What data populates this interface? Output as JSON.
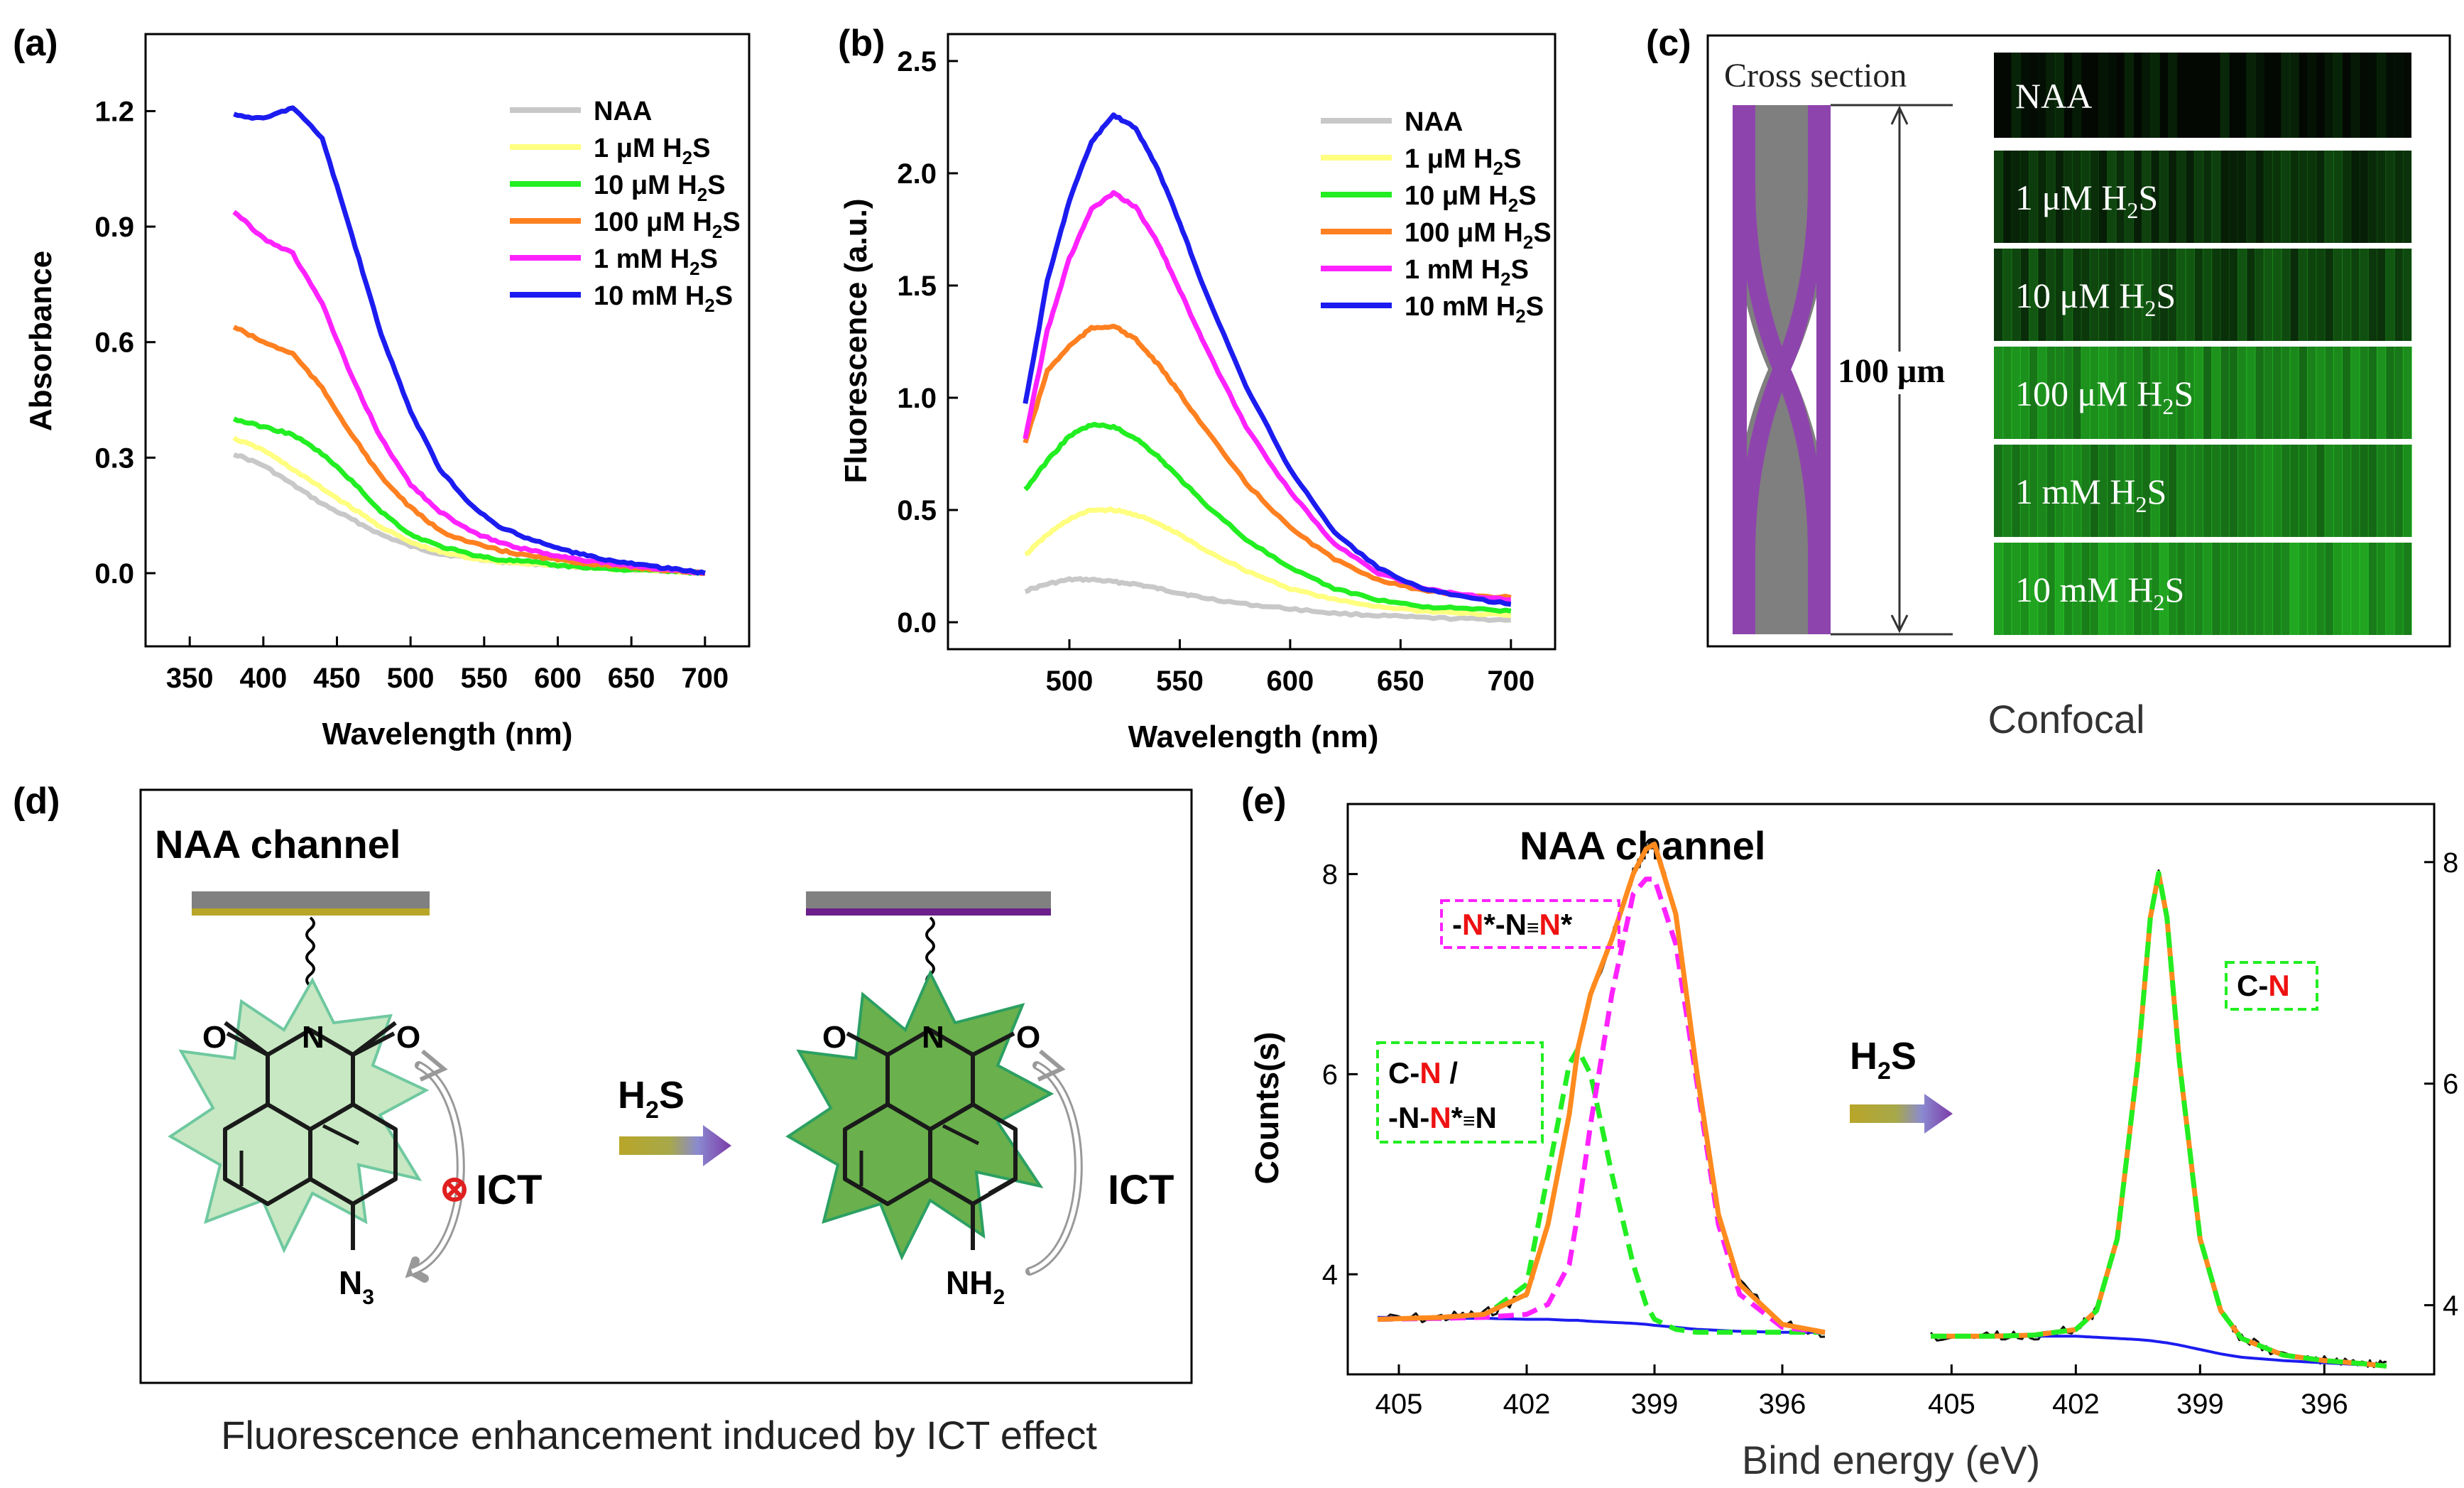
{
  "colors": {
    "NAA": "#c8c8c8",
    "1 µM": "#ffff80",
    "10 µM": "#22ee22",
    "100 µM": "#ff8020",
    "1 mM": "#ff22ff",
    "10 mM": "#1c1cf0",
    "fit_sum": "#ff8a1e",
    "fit_green": "#22ee22",
    "fit_magenta": "#ff22ff",
    "baseline": "#1c1cf0",
    "raw": "#111111",
    "n_red": "#ee1111"
  },
  "panel_labels": {
    "a": "(a)",
    "b": "(b)",
    "c": "(c)",
    "d": "(d)",
    "e": "(e)"
  },
  "chart_data": [
    {
      "id": "a",
      "type": "line",
      "title": "",
      "xlabel": "Wavelength (nm)",
      "ylabel": "Absorbance",
      "xlim": [
        320,
        730
      ],
      "ylim": [
        -0.19,
        1.4
      ],
      "xticks": [
        350,
        400,
        450,
        500,
        550,
        600,
        650,
        700
      ],
      "yticks": [
        0.0,
        0.3,
        0.6,
        0.9,
        1.2
      ],
      "ytick_labels": [
        "0.0",
        "0.3",
        "0.6",
        "0.9",
        "1.2"
      ],
      "legend_position": "top-right",
      "x": [
        380,
        400,
        420,
        440,
        460,
        480,
        500,
        520,
        540,
        560,
        580,
        600,
        620,
        640,
        660,
        680,
        700
      ],
      "series": [
        {
          "name": "NAA",
          "values": [
            0.31,
            0.28,
            0.23,
            0.18,
            0.14,
            0.1,
            0.07,
            0.05,
            0.04,
            0.03,
            0.025,
            0.02,
            0.015,
            0.01,
            0.008,
            0.005,
            0.0
          ]
        },
        {
          "name": "1 μM H2S",
          "values": [
            0.35,
            0.32,
            0.27,
            0.22,
            0.17,
            0.12,
            0.08,
            0.055,
            0.04,
            0.03,
            0.025,
            0.02,
            0.015,
            0.01,
            0.008,
            0.005,
            0.0
          ]
        },
        {
          "name": "10 μM H2S",
          "values": [
            0.4,
            0.38,
            0.36,
            0.31,
            0.24,
            0.16,
            0.1,
            0.07,
            0.05,
            0.035,
            0.03,
            0.02,
            0.015,
            0.01,
            0.008,
            0.005,
            0.0
          ]
        },
        {
          "name": "100 μM H2S",
          "values": [
            0.64,
            0.6,
            0.57,
            0.48,
            0.36,
            0.25,
            0.17,
            0.11,
            0.08,
            0.06,
            0.045,
            0.035,
            0.025,
            0.018,
            0.012,
            0.006,
            0.0
          ]
        },
        {
          "name": "1 mM H2S",
          "values": [
            0.94,
            0.87,
            0.83,
            0.7,
            0.51,
            0.35,
            0.23,
            0.16,
            0.11,
            0.08,
            0.06,
            0.045,
            0.033,
            0.023,
            0.015,
            0.008,
            0.0
          ]
        },
        {
          "name": "10 mM H2S",
          "values": [
            1.19,
            1.18,
            1.21,
            1.13,
            0.88,
            0.62,
            0.42,
            0.27,
            0.18,
            0.12,
            0.09,
            0.065,
            0.045,
            0.03,
            0.02,
            0.01,
            0.0
          ]
        }
      ]
    },
    {
      "id": "b",
      "type": "line",
      "title": "",
      "xlabel": "Wavelength (nm)",
      "ylabel": "Fluorescence (a.u.)",
      "xlim": [
        445,
        720
      ],
      "ylim": [
        -0.12,
        2.62
      ],
      "xticks": [
        500,
        550,
        600,
        650,
        700
      ],
      "yticks": [
        0.0,
        0.5,
        1.0,
        1.5,
        2.0,
        2.5
      ],
      "ytick_labels": [
        "0.0",
        "0.5",
        "1.0",
        "1.5",
        "2.0",
        "2.5"
      ],
      "legend_position": "top-right",
      "x": [
        480,
        490,
        500,
        510,
        520,
        530,
        540,
        550,
        560,
        580,
        600,
        620,
        640,
        660,
        680,
        700
      ],
      "series": [
        {
          "name": "NAA",
          "values": [
            0.14,
            0.17,
            0.19,
            0.19,
            0.18,
            0.17,
            0.15,
            0.13,
            0.11,
            0.08,
            0.06,
            0.04,
            0.03,
            0.02,
            0.015,
            0.01
          ]
        },
        {
          "name": "1 μM H2S",
          "values": [
            0.3,
            0.39,
            0.46,
            0.5,
            0.5,
            0.48,
            0.44,
            0.39,
            0.33,
            0.23,
            0.15,
            0.1,
            0.07,
            0.05,
            0.04,
            0.03
          ]
        },
        {
          "name": "10 μM H2S",
          "values": [
            0.59,
            0.72,
            0.83,
            0.88,
            0.87,
            0.82,
            0.74,
            0.64,
            0.54,
            0.37,
            0.24,
            0.15,
            0.1,
            0.07,
            0.06,
            0.05
          ]
        },
        {
          "name": "100 μM H2S",
          "values": [
            0.8,
            1.12,
            1.23,
            1.31,
            1.32,
            1.26,
            1.15,
            1.02,
            0.88,
            0.62,
            0.42,
            0.28,
            0.19,
            0.14,
            0.12,
            0.11
          ]
        },
        {
          "name": "1 mM H2S",
          "values": [
            0.82,
            1.3,
            1.62,
            1.84,
            1.91,
            1.85,
            1.69,
            1.48,
            1.26,
            0.87,
            0.58,
            0.35,
            0.22,
            0.15,
            0.12,
            0.1
          ]
        },
        {
          "name": "10 mM H2S",
          "values": [
            0.97,
            1.52,
            1.88,
            2.14,
            2.26,
            2.2,
            2.02,
            1.78,
            1.51,
            1.05,
            0.68,
            0.4,
            0.24,
            0.15,
            0.11,
            0.08
          ]
        }
      ]
    },
    {
      "id": "e",
      "type": "line",
      "title": "NAA channel",
      "xlabel": "Bind energy (eV)",
      "ylabel": "Counts(s)",
      "ylim": [
        3.0,
        8.7
      ],
      "left_yticks": [
        4,
        6,
        8
      ],
      "right_yticks": [
        4,
        6,
        8
      ],
      "left_subpanel": {
        "xlim": [
          406,
          394.5
        ],
        "xticks": [
          405,
          402,
          399,
          396
        ],
        "x": [
          405.5,
          404,
          403,
          402,
          401.5,
          401,
          400.8,
          400.5,
          400,
          399.5,
          399.2,
          399,
          398.5,
          398,
          397.5,
          397,
          396,
          395
        ],
        "fit_sum": [
          3.55,
          3.57,
          3.6,
          3.8,
          4.5,
          5.6,
          6.25,
          6.8,
          7.35,
          8.0,
          8.25,
          8.3,
          7.6,
          6.0,
          4.6,
          3.9,
          3.5,
          3.42
        ],
        "component_1": [
          3.55,
          3.56,
          3.58,
          3.9,
          5.0,
          6.1,
          6.25,
          6.0,
          5.0,
          4.1,
          3.7,
          3.55,
          3.45,
          3.42,
          3.42,
          3.42,
          3.42,
          3.42
        ],
        "component_2": [
          3.55,
          3.56,
          3.57,
          3.6,
          3.7,
          4.1,
          4.6,
          5.5,
          6.8,
          7.8,
          7.95,
          7.95,
          7.3,
          5.9,
          4.5,
          3.8,
          3.47,
          3.42
        ],
        "baseline": [
          3.57,
          3.56,
          3.56,
          3.55,
          3.55,
          3.54,
          3.54,
          3.53,
          3.52,
          3.51,
          3.5,
          3.49,
          3.47,
          3.45,
          3.44,
          3.43,
          3.42,
          3.42
        ]
      },
      "right_subpanel": {
        "xlim": [
          406,
          394
        ],
        "xticks": [
          405,
          402,
          399,
          396
        ],
        "x": [
          405.5,
          404,
          403,
          402,
          401.5,
          401,
          400.5,
          400.2,
          400,
          399.8,
          399.5,
          399,
          398.5,
          398,
          397,
          396,
          395,
          394.5
        ],
        "fit_sum": [
          3.72,
          3.72,
          3.73,
          3.78,
          3.95,
          4.6,
          6.2,
          7.5,
          7.9,
          7.5,
          6.2,
          4.6,
          3.95,
          3.7,
          3.55,
          3.5,
          3.47,
          3.45
        ],
        "baseline": [
          3.72,
          3.72,
          3.72,
          3.72,
          3.71,
          3.7,
          3.69,
          3.68,
          3.67,
          3.66,
          3.64,
          3.6,
          3.56,
          3.53,
          3.5,
          3.48,
          3.46,
          3.45
        ]
      }
    }
  ],
  "panel_a": {
    "legend": [
      {
        "name": "NAA",
        "base": "NAA",
        "sub": "",
        "tail": ""
      },
      {
        "name": "1 μM H2S",
        "base": "1 μM H",
        "sub": "2",
        "tail": "S"
      },
      {
        "name": "10 μM H2S",
        "base": "10 μM H",
        "sub": "2",
        "tail": "S"
      },
      {
        "name": "100 μM H2S",
        "base": "100 μM H",
        "sub": "2",
        "tail": "S"
      },
      {
        "name": "1 mM H2S",
        "base": "1 mM H",
        "sub": "2",
        "tail": "S"
      },
      {
        "name": "10 mM H2S",
        "base": "10 mM H",
        "sub": "2",
        "tail": "S"
      }
    ]
  },
  "panel_c": {
    "cross_section_label": "Cross section",
    "scale_label": "100 μm",
    "caption": "Confocal",
    "rows": [
      {
        "base": "NAA",
        "sub": "",
        "tail": "",
        "intensity": 0.05
      },
      {
        "base": "1 μM H",
        "sub": "2",
        "tail": "S",
        "intensity": 0.22
      },
      {
        "base": "10 μM H",
        "sub": "2",
        "tail": "S",
        "intensity": 0.3
      },
      {
        "base": "100 μM H",
        "sub": "2",
        "tail": "S",
        "intensity": 0.62
      },
      {
        "base": "1 mM H",
        "sub": "2",
        "tail": "S",
        "intensity": 0.6
      },
      {
        "base": "10 mM H",
        "sub": "2",
        "tail": "S",
        "intensity": 0.72
      }
    ]
  },
  "panel_d": {
    "title": "NAA channel",
    "arrow_base": "H",
    "arrow_sub": "2",
    "arrow_tail": "S",
    "ict_label": "ICT",
    "azide": {
      "base": "N",
      "sub": "3"
    },
    "amine": {
      "base": "NH",
      "sub": "2"
    },
    "atom_O": "O",
    "atom_N": "N",
    "caption": "Fluorescence enhancement induced by ICT effect"
  },
  "panel_e": {
    "arrow_base": "H",
    "arrow_sub": "2",
    "arrow_tail": "S",
    "label_magenta": {
      "p1": "-",
      "p2": "N",
      "p3": "*-N",
      "p4": "≡",
      "p5": "N",
      "p6": "*"
    },
    "label_green_line1": {
      "p1": "C-",
      "p2": "N",
      "p3": " /"
    },
    "label_green_line2": {
      "p1": "-N-",
      "p2": "N",
      "p3": "*",
      "p4": "≡",
      "p5": "N"
    },
    "label_right": {
      "p1": "C-",
      "p2": "N"
    }
  }
}
